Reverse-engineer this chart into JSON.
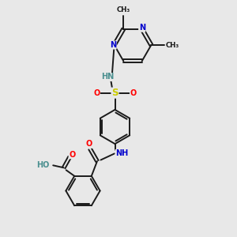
{
  "bg_color": "#e8e8e8",
  "bond_color": "#1a1a1a",
  "N_color": "#0000cc",
  "O_color": "#ff0000",
  "S_color": "#cccc00",
  "H_color": "#4a8f8f",
  "figsize": [
    3.0,
    3.0
  ],
  "dpi": 100,
  "xlim": [
    0,
    10
  ],
  "ylim": [
    0,
    10
  ],
  "bond_lw": 1.4,
  "font_size": 7.0,
  "font_size_small": 6.2
}
